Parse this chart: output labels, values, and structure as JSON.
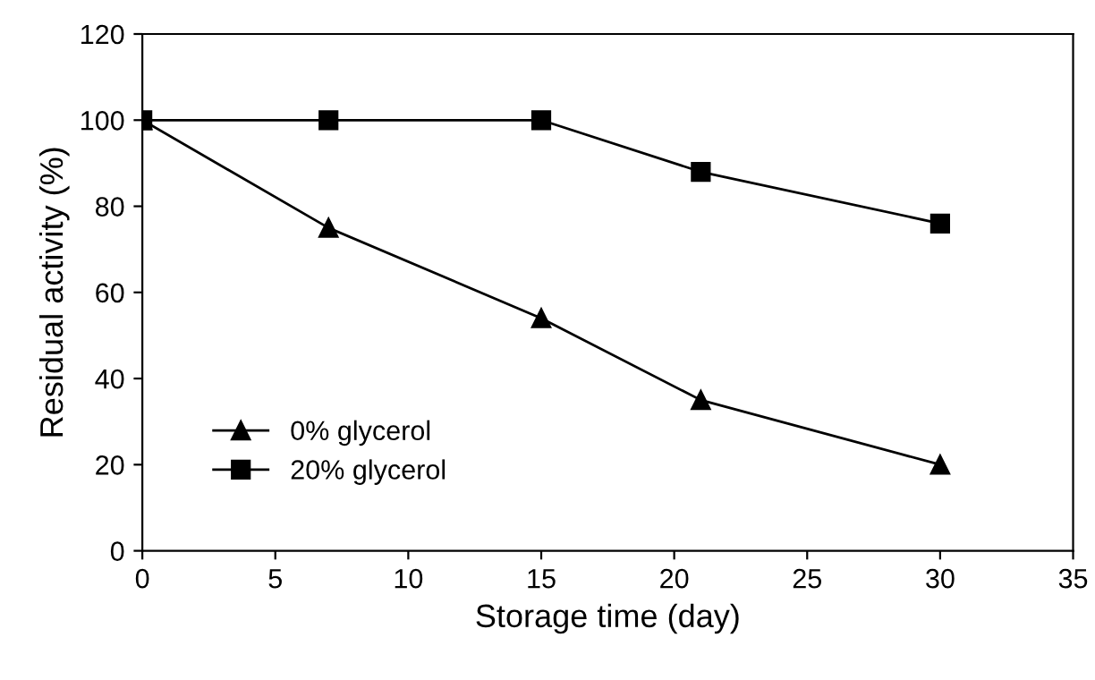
{
  "chart_data": {
    "type": "line",
    "xlabel": "Storage time (day)",
    "ylabel": "Residual activity (%)",
    "x": [
      0,
      7,
      15,
      21,
      30
    ],
    "series": [
      {
        "name": "0% glycerol",
        "color": "#000000",
        "marker": "triangle",
        "values": [
          100,
          75,
          54,
          35,
          20
        ]
      },
      {
        "name": "20% glycerol",
        "color": "#000000",
        "marker": "square",
        "values": [
          100,
          100,
          100,
          88,
          76
        ]
      }
    ],
    "xlim": [
      0,
      35
    ],
    "xticks": [
      0,
      5,
      10,
      15,
      20,
      25,
      30,
      35
    ],
    "ylim": [
      0,
      120
    ],
    "yticks": [
      0,
      20,
      40,
      60,
      80,
      100,
      120
    ],
    "grid": false,
    "legend": "bottom left",
    "line_style": "solid"
  }
}
